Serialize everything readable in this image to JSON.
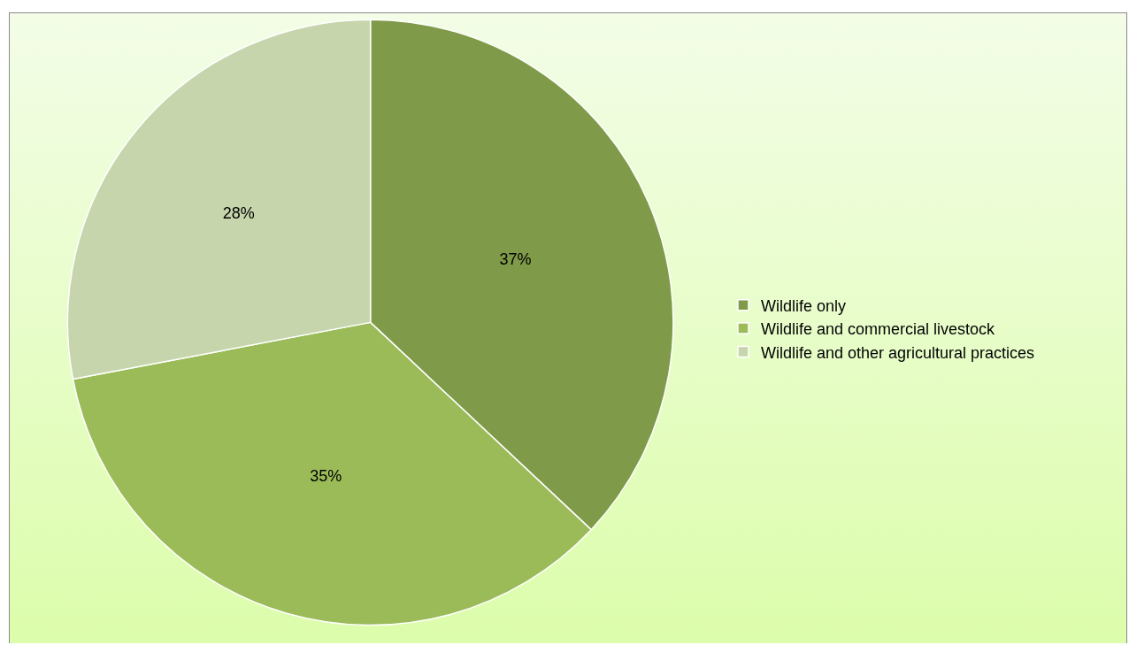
{
  "chart_data": {
    "type": "pie",
    "categories": [
      "Wildlife only",
      "Wildlife and commercial livestock",
      "Wildlife and other agricultural practices"
    ],
    "values": [
      37,
      35,
      28
    ],
    "value_labels": [
      "37%",
      "35%",
      "28%"
    ],
    "colors": [
      "#7f9a48",
      "#9bbb59",
      "#c6d5ab"
    ],
    "legend": "right"
  }
}
